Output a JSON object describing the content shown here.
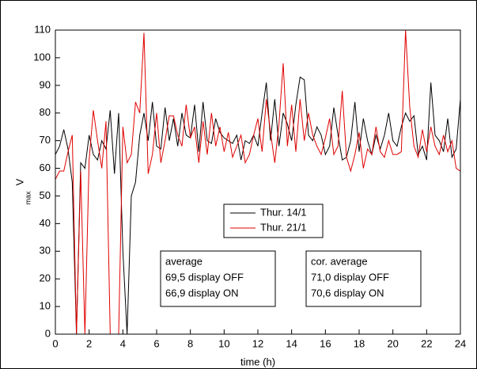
{
  "chart_data": {
    "type": "line",
    "xlabel": "time (h)",
    "ylabel": "V",
    "ylabel_sub": "max",
    "x": [
      0,
      0.25,
      0.5,
      0.75,
      1,
      1.25,
      1.5,
      1.75,
      2,
      2.25,
      2.5,
      2.75,
      3,
      3.25,
      3.5,
      3.75,
      4,
      4.25,
      4.5,
      4.75,
      5,
      5.25,
      5.5,
      5.75,
      6,
      6.25,
      6.5,
      6.75,
      7,
      7.25,
      7.5,
      7.75,
      8,
      8.25,
      8.5,
      8.75,
      9,
      9.25,
      9.5,
      9.75,
      10,
      10.25,
      10.5,
      10.75,
      11,
      11.25,
      11.5,
      11.75,
      12,
      12.25,
      12.5,
      12.75,
      13,
      13.25,
      13.5,
      13.75,
      14,
      14.25,
      14.5,
      14.75,
      15,
      15.25,
      15.5,
      15.75,
      16,
      16.25,
      16.5,
      16.75,
      17,
      17.25,
      17.5,
      17.75,
      18,
      18.25,
      18.5,
      18.75,
      19,
      19.25,
      19.5,
      19.75,
      20,
      20.25,
      20.5,
      20.75,
      21,
      21.25,
      21.5,
      21.75,
      22,
      22.25,
      22.5,
      22.75,
      23,
      23.25,
      23.5,
      23.75,
      24
    ],
    "series": [
      {
        "name": "Thur. 14/1",
        "color": "#000000",
        "values": [
          65,
          68,
          74,
          67,
          55,
          0,
          62,
          60,
          72,
          65,
          63,
          70,
          67,
          81,
          58,
          80,
          30,
          0,
          50,
          55,
          72,
          80,
          70,
          84,
          68,
          67,
          82,
          70,
          78,
          68,
          80,
          72,
          71,
          83,
          66,
          84,
          70,
          69,
          78,
          73,
          71,
          70,
          69,
          72,
          63,
          70,
          69,
          72,
          68,
          80,
          91,
          70,
          85,
          68,
          80,
          76,
          70,
          83,
          93,
          92,
          72,
          70,
          75,
          72,
          65,
          68,
          82,
          72,
          63,
          64,
          70,
          84,
          66,
          78,
          70,
          65,
          72,
          67,
          72,
          80,
          70,
          68,
          75,
          80,
          77,
          79,
          65,
          68,
          63,
          91,
          72,
          70,
          66,
          78,
          64,
          67,
          85
        ]
      },
      {
        "name": "Thur. 21/1",
        "color": "#e00000",
        "values": [
          56,
          59,
          59,
          66,
          72,
          0,
          59,
          0,
          63,
          81,
          70,
          60,
          77,
          0,
          0,
          0,
          75,
          62,
          65,
          84,
          80,
          109,
          58,
          65,
          80,
          62,
          70,
          79,
          79,
          72,
          68,
          83,
          71,
          75,
          62,
          77,
          65,
          80,
          68,
          75,
          66,
          73,
          64,
          68,
          72,
          62,
          65,
          72,
          78,
          66,
          85,
          73,
          62,
          76,
          98,
          68,
          83,
          66,
          85,
          70,
          80,
          72,
          68,
          65,
          71,
          78,
          65,
          68,
          88,
          64,
          59,
          65,
          73,
          60,
          67,
          65,
          75,
          66,
          64,
          70,
          65,
          65,
          66,
          110,
          82,
          68,
          64,
          74,
          66,
          75,
          68,
          65,
          72,
          66,
          70,
          60,
          59
        ]
      }
    ],
    "xlim": [
      0,
      24
    ],
    "xticks": [
      0,
      2,
      4,
      6,
      8,
      10,
      12,
      14,
      16,
      18,
      20,
      22,
      24
    ],
    "ylim": [
      0,
      110
    ],
    "yticks": [
      0,
      10,
      20,
      30,
      40,
      50,
      60,
      70,
      80,
      90,
      100,
      110
    ],
    "annotations": [
      [
        "average",
        "69,5 display OFF",
        "66,9 display ON"
      ],
      [
        "cor. average",
        "71,0 display OFF",
        "70,6 display ON"
      ]
    ]
  }
}
